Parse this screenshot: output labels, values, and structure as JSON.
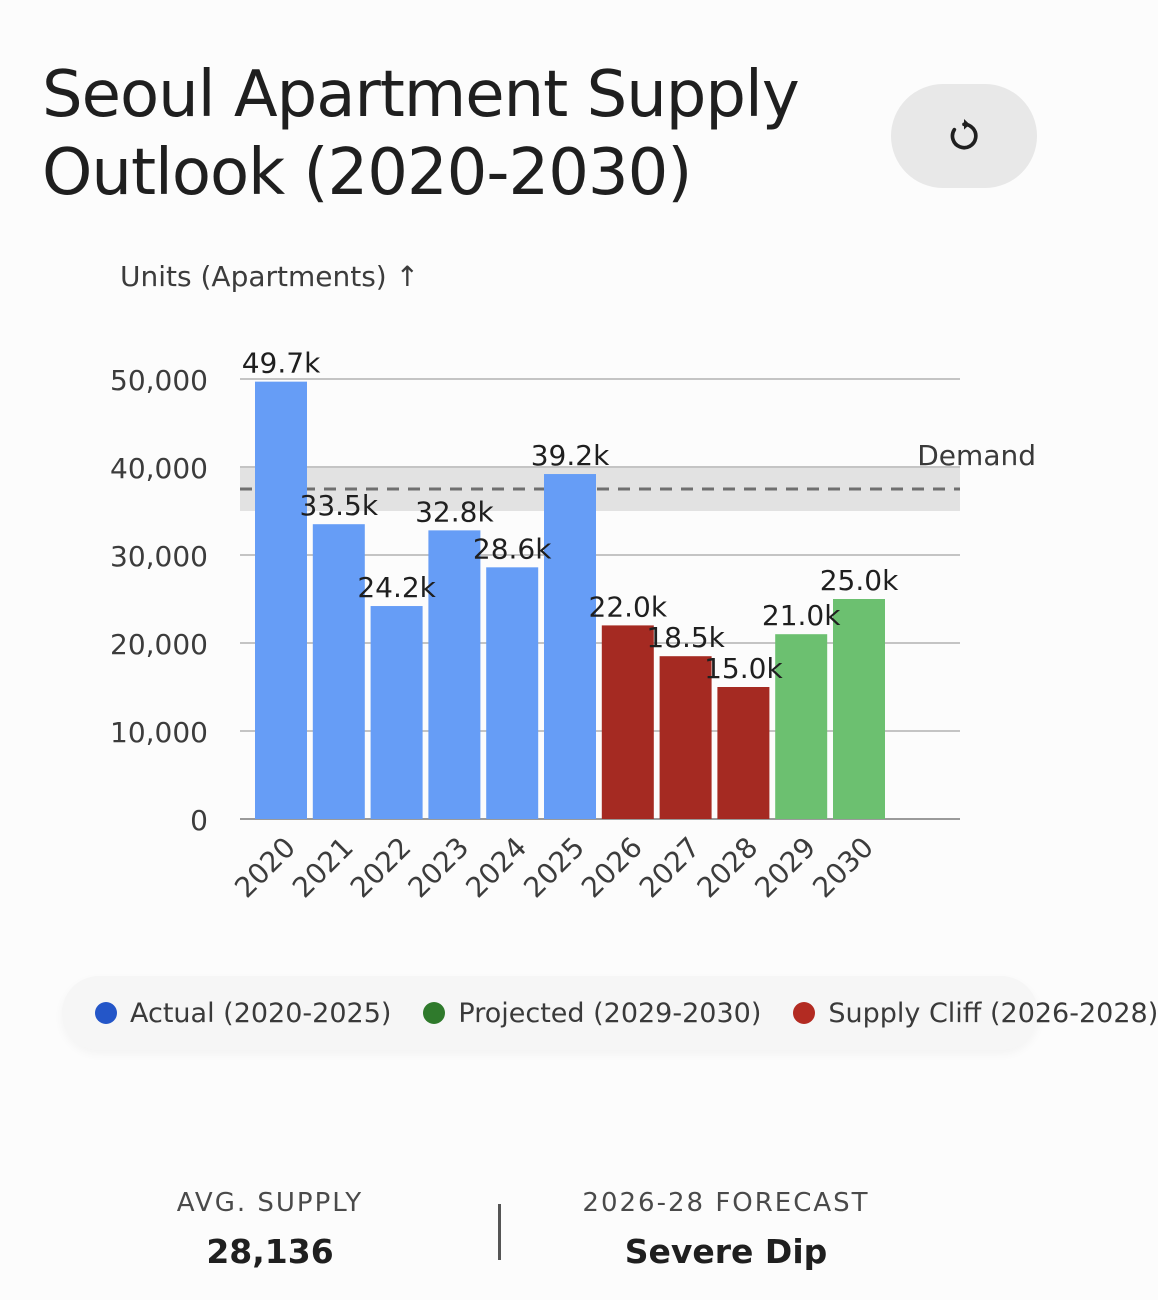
{
  "title": "Seoul Apartment Supply Outlook (2020-2030)",
  "reset_button": {
    "icon": "refresh-icon"
  },
  "chart_data": {
    "type": "bar",
    "ylabel": "Units (Apartments) ↑",
    "xlabel": "",
    "ylim": [
      0,
      50000
    ],
    "yticks": [
      0,
      10000,
      20000,
      30000,
      40000,
      50000
    ],
    "ytick_labels": [
      "0",
      "10,000",
      "20,000",
      "30,000",
      "40,000",
      "50,000"
    ],
    "grid": true,
    "categories": [
      "2020",
      "2021",
      "2022",
      "2023",
      "2024",
      "2025",
      "2026",
      "2027",
      "2028",
      "2029",
      "2030"
    ],
    "values": [
      49700,
      33500,
      24200,
      32800,
      28600,
      39200,
      22000,
      18500,
      15000,
      21000,
      25000
    ],
    "data_labels": [
      "49.7k",
      "33.5k",
      "24.2k",
      "32.8k",
      "28.6k",
      "39.2k",
      "22.0k",
      "18.5k",
      "15.0k",
      "21.0k",
      "25.0k"
    ],
    "groups": [
      "actual",
      "actual",
      "actual",
      "actual",
      "actual",
      "actual",
      "cliff",
      "cliff",
      "cliff",
      "projected",
      "projected"
    ],
    "group_colors": {
      "actual": "#669df6",
      "cliff": "#a52a22",
      "projected": "#6cc070"
    },
    "demand": {
      "label": "Demand",
      "value": 37500,
      "band": [
        35000,
        40000
      ]
    }
  },
  "legend": {
    "items": [
      {
        "label": "Actual (2020-2025)",
        "color": "#2456c8"
      },
      {
        "label": "Projected (2029-2030)",
        "color": "#2f7a2c"
      },
      {
        "label": "Supply Cliff (2026-2028)",
        "color": "#b32b22"
      }
    ]
  },
  "stats": {
    "avg_supply": {
      "label": "AVG. SUPPLY",
      "value": "28,136"
    },
    "forecast": {
      "label": "2026-28 FORECAST",
      "value": "Severe Dip"
    }
  }
}
